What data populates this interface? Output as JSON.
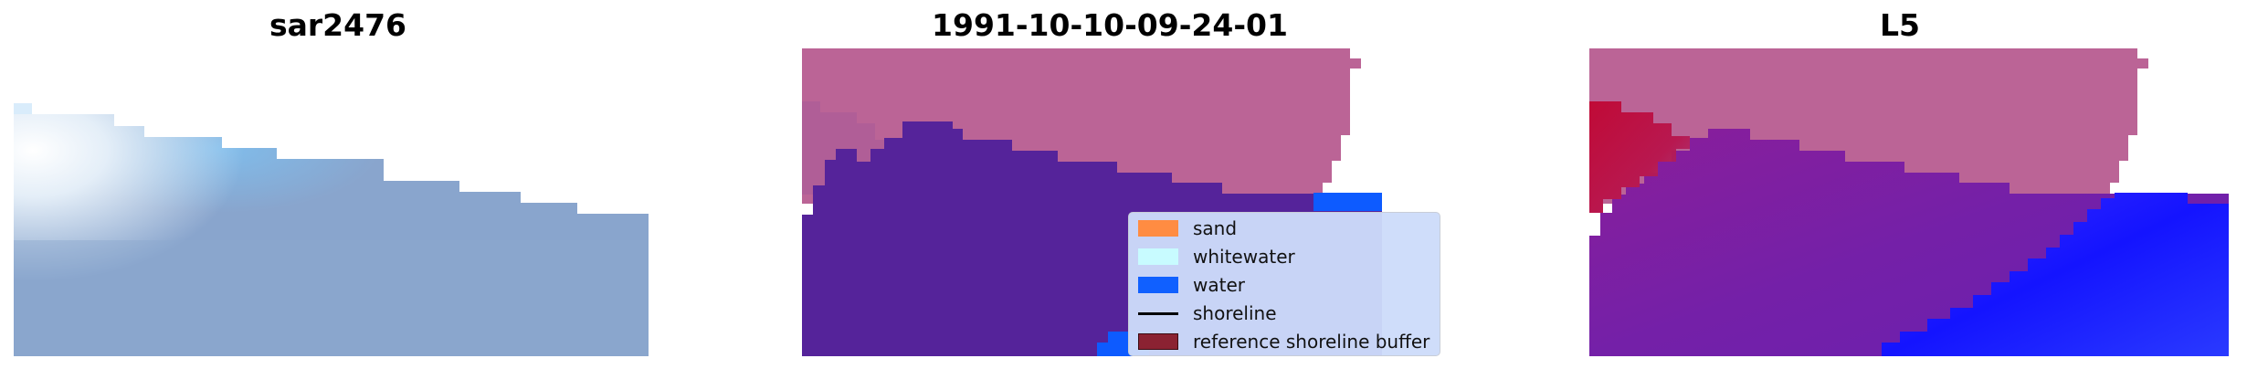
{
  "panels": [
    {
      "title": "sar2476"
    },
    {
      "title": "1991-10-10-09-24-01"
    },
    {
      "title": "L5"
    }
  ],
  "legend": {
    "items": [
      {
        "label": "sand",
        "kind": "patch",
        "color": "#ff8c42",
        "edge": "#ff8c42"
      },
      {
        "label": "whitewater",
        "kind": "patch",
        "color": "#c8fbff",
        "edge": "#c8fbff"
      },
      {
        "label": "water",
        "kind": "patch",
        "color": "#1060ff",
        "edge": "#1060ff"
      },
      {
        "label": "shoreline",
        "kind": "line",
        "color": "#000000"
      },
      {
        "label": "reference shoreline buffer",
        "kind": "patch",
        "color": "#8b2232",
        "edge": "#3b0a10"
      }
    ]
  },
  "colors": {
    "rgb_sea": "#8aa6cf",
    "rgb_whitecap": "#eef5fb",
    "rgb_light_blue": "#8ec4ec",
    "class_land": "#bb6496",
    "class_water_dark": "#55239a",
    "class_water_bright": "#0d5bff",
    "prob_land": "#bb6496",
    "prob_red": "#c00a36",
    "prob_purple": "#7420a8",
    "prob_blue": "#1a1aff"
  }
}
